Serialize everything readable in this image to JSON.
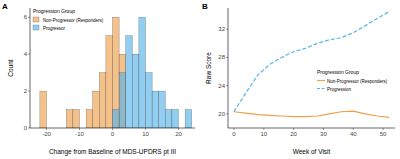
{
  "chart_data": [
    {
      "type": "histogram",
      "title": "A",
      "x_label": "Change from Baseline of MDS-UPDRS pt III",
      "y_label": "Count",
      "legend_title": "Progression Group",
      "legend": "top-left",
      "grid": false,
      "bins": [
        -24,
        -22,
        -20,
        -18,
        -16,
        -14,
        -12,
        -10,
        -8,
        -6,
        -4,
        -2,
        0,
        2,
        4,
        6,
        8,
        10,
        12,
        14,
        16,
        18,
        20,
        22,
        24
      ],
      "series": [
        {
          "name": "Non-Progressor (Responders)",
          "color": "#F0A04B",
          "values": [
            0,
            2,
            0,
            0,
            0,
            1,
            1,
            0,
            1,
            2,
            3,
            5,
            6,
            4,
            0,
            0,
            0,
            0,
            0,
            0,
            0,
            0,
            0,
            0
          ]
        },
        {
          "name": "Progressor",
          "color": "#56B4E9",
          "values": [
            0,
            0,
            0,
            0,
            0,
            0,
            0,
            0,
            0,
            0,
            0,
            0,
            1,
            3,
            5,
            4,
            6,
            3,
            2,
            2,
            1,
            1,
            0,
            1
          ]
        }
      ],
      "xlim": [
        -25,
        25
      ],
      "xticks": [
        -20,
        -10,
        0,
        10,
        20
      ],
      "ylim": [
        0,
        6.5
      ],
      "yticks": [
        0,
        2,
        4,
        6
      ]
    },
    {
      "type": "line",
      "title": "B",
      "x_label": "Week of Visit",
      "y_label": "Raw Score",
      "legend_title": "Progression Group",
      "legend": "right",
      "grid": false,
      "x": [
        0,
        4,
        8,
        12,
        16,
        20,
        24,
        28,
        32,
        36,
        40,
        44,
        48,
        52
      ],
      "series": [
        {
          "name": "Non-Progressor (Responders)",
          "color": "#F0A04B",
          "line_style": "solid",
          "values": [
            20.3,
            20.1,
            19.9,
            19.8,
            19.7,
            19.6,
            19.6,
            19.7,
            20.0,
            20.3,
            20.4,
            20.0,
            19.7,
            19.5
          ]
        },
        {
          "name": "Progression",
          "color": "#56B4E9",
          "line_style": "dashed",
          "values": [
            20.3,
            23.0,
            25.5,
            27.0,
            28.0,
            28.8,
            29.3,
            30.0,
            30.5,
            30.8,
            31.5,
            32.5,
            33.5,
            34.5
          ]
        }
      ],
      "xlim": [
        -2,
        54
      ],
      "xticks": [
        0,
        10,
        20,
        30,
        40,
        50
      ],
      "ylim": [
        18,
        35
      ],
      "yticks": [
        20,
        24,
        28,
        32
      ]
    }
  ]
}
